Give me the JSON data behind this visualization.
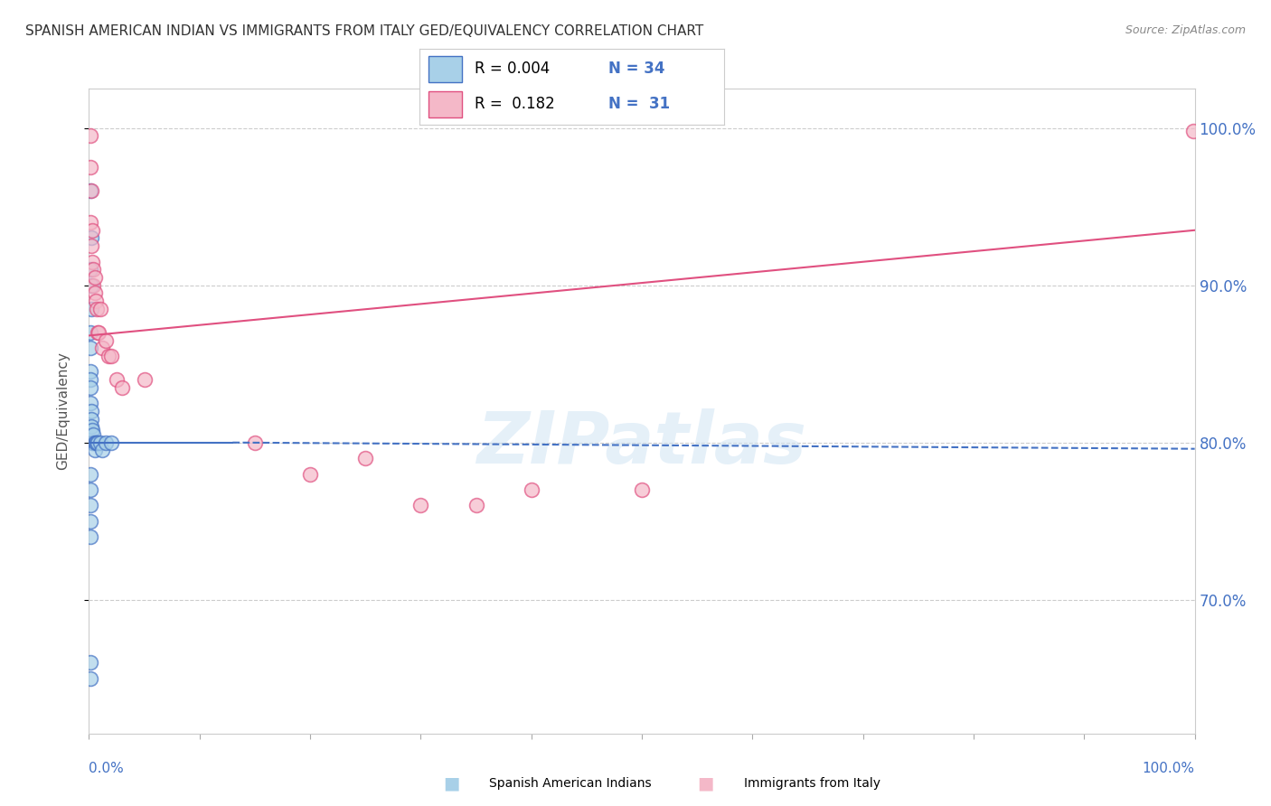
{
  "title": "SPANISH AMERICAN INDIAN VS IMMIGRANTS FROM ITALY GED/EQUIVALENCY CORRELATION CHART",
  "source": "Source: ZipAtlas.com",
  "ylabel": "GED/Equivalency",
  "ytick_labels": [
    "100.0%",
    "90.0%",
    "80.0%",
    "70.0%"
  ],
  "ytick_values": [
    1.0,
    0.9,
    0.8,
    0.7
  ],
  "xlim": [
    0.0,
    1.0
  ],
  "ylim": [
    0.615,
    1.025
  ],
  "blue_color": "#a8d0e8",
  "pink_color": "#f4b8c8",
  "blue_edge_color": "#4472c4",
  "pink_edge_color": "#e05080",
  "blue_line_color": "#4472c4",
  "pink_line_color": "#e05080",
  "blue_scatter": {
    "x": [
      0.001,
      0.002,
      0.001,
      0.002,
      0.002,
      0.001,
      0.001,
      0.001,
      0.001,
      0.001,
      0.001,
      0.002,
      0.002,
      0.002,
      0.003,
      0.003,
      0.004,
      0.004,
      0.005,
      0.005,
      0.006,
      0.007,
      0.008,
      0.01,
      0.012,
      0.015,
      0.02,
      0.001,
      0.001,
      0.001,
      0.001,
      0.001,
      0.001,
      0.001
    ],
    "y": [
      0.96,
      0.93,
      0.91,
      0.9,
      0.885,
      0.87,
      0.86,
      0.845,
      0.84,
      0.835,
      0.825,
      0.82,
      0.815,
      0.81,
      0.808,
      0.8,
      0.8,
      0.805,
      0.8,
      0.795,
      0.8,
      0.8,
      0.8,
      0.8,
      0.795,
      0.8,
      0.8,
      0.78,
      0.77,
      0.76,
      0.75,
      0.74,
      0.66,
      0.65
    ]
  },
  "pink_scatter": {
    "x": [
      0.001,
      0.001,
      0.002,
      0.002,
      0.003,
      0.003,
      0.004,
      0.004,
      0.005,
      0.005,
      0.006,
      0.007,
      0.008,
      0.009,
      0.01,
      0.012,
      0.015,
      0.018,
      0.02,
      0.025,
      0.03,
      0.05,
      0.4,
      0.5,
      0.15,
      0.2,
      0.25,
      0.3,
      0.35,
      0.999,
      0.001
    ],
    "y": [
      0.995,
      0.94,
      0.96,
      0.925,
      0.935,
      0.915,
      0.91,
      0.9,
      0.905,
      0.895,
      0.89,
      0.885,
      0.87,
      0.87,
      0.885,
      0.86,
      0.865,
      0.855,
      0.855,
      0.84,
      0.835,
      0.84,
      0.77,
      0.77,
      0.8,
      0.78,
      0.79,
      0.76,
      0.76,
      0.998,
      0.975
    ]
  },
  "blue_trend_solid": {
    "x": [
      0.0,
      0.13
    ],
    "y": [
      0.8,
      0.8
    ]
  },
  "blue_trend_dashed": {
    "x": [
      0.13,
      1.0
    ],
    "y": [
      0.8,
      0.796
    ]
  },
  "pink_trend": {
    "x": [
      0.0,
      1.0
    ],
    "y": [
      0.868,
      0.935
    ]
  },
  "watermark": "ZIPatlas",
  "background_color": "#ffffff",
  "grid_color": "#cccccc",
  "title_color": "#333333",
  "tick_color": "#4472c4",
  "legend": {
    "r1": "R = 0.004",
    "n1": "N = 34",
    "r2": "R =  0.182",
    "n2": "N =  31"
  }
}
